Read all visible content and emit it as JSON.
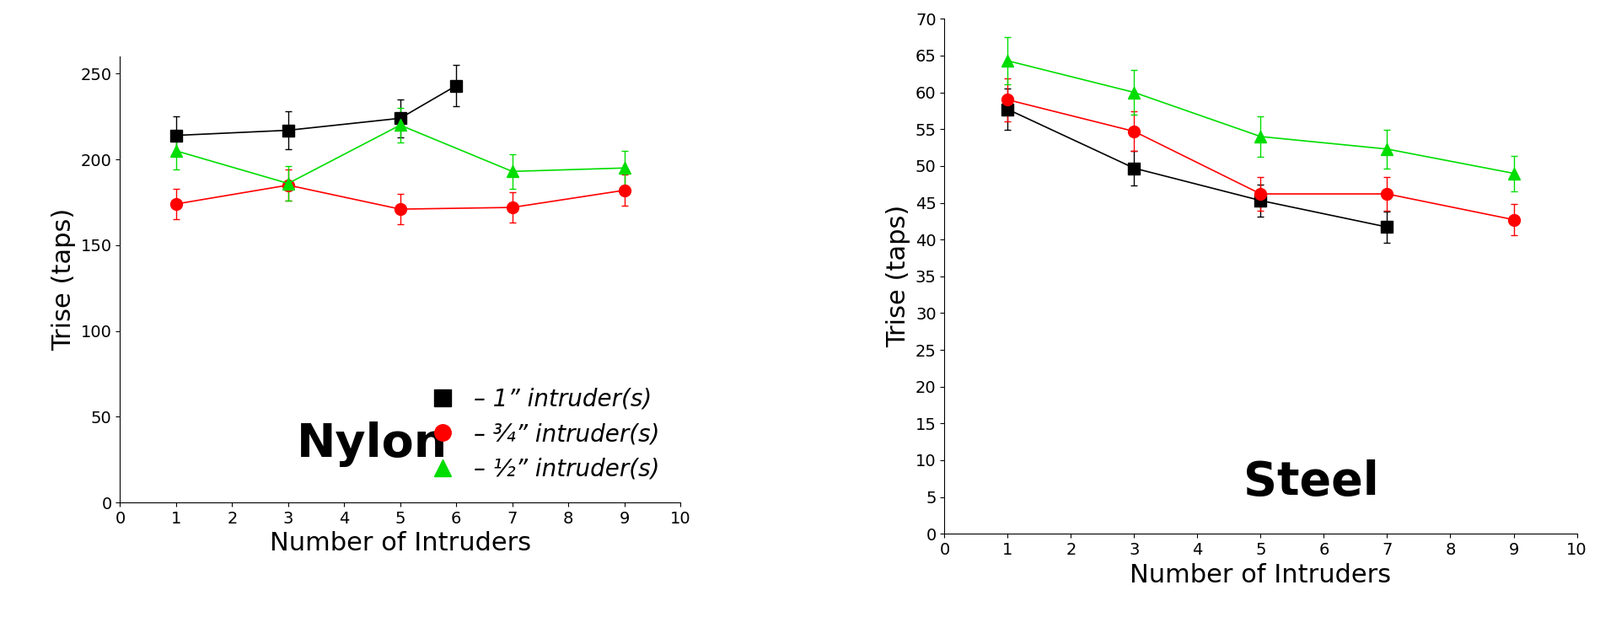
{
  "chart_data": [
    {
      "type": "line",
      "annotation": "Nylon",
      "x_label": "Number of Intruders",
      "y_label": "Trise (taps)",
      "xlim": [
        0,
        10
      ],
      "xticks": [
        0,
        1,
        2,
        3,
        4,
        5,
        6,
        7,
        8,
        9,
        10
      ],
      "ylim": [
        0,
        260
      ],
      "yticks": [
        0,
        50,
        100,
        150,
        200,
        250
      ],
      "legend": "lower right",
      "series": [
        {
          "name": "– 1” intruder(s)",
          "color": "#000000",
          "marker": "square",
          "x": [
            1,
            3,
            5,
            6
          ],
          "values": [
            214,
            217,
            224,
            243
          ],
          "errors": [
            11,
            11,
            11,
            12
          ]
        },
        {
          "name": "– ¾” intruder(s)",
          "color": "#ff0000",
          "marker": "circle",
          "x": [
            1,
            3,
            5,
            7,
            9
          ],
          "values": [
            174,
            185,
            171,
            172,
            182
          ],
          "errors": [
            9,
            9,
            9,
            9,
            9
          ]
        },
        {
          "name": "– ½” intruder(s)",
          "color": "#00dd00",
          "marker": "triangle",
          "x": [
            1,
            3,
            5,
            7,
            9
          ],
          "values": [
            205,
            186,
            220,
            193,
            195
          ],
          "errors": [
            11,
            10,
            10,
            10,
            10
          ]
        }
      ]
    },
    {
      "type": "line",
      "annotation": "Steel",
      "x_label": "Number of Intruders",
      "y_label": "Trise (taps)",
      "xlim": [
        0,
        10
      ],
      "xticks": [
        0,
        1,
        2,
        3,
        4,
        5,
        6,
        7,
        8,
        9,
        10
      ],
      "ylim": [
        0,
        70
      ],
      "yticks": [
        0,
        5,
        10,
        15,
        20,
        25,
        30,
        35,
        40,
        45,
        50,
        55,
        60,
        65,
        70
      ],
      "series": [
        {
          "color": "#000000",
          "marker": "square",
          "x": [
            1,
            3,
            5,
            7
          ],
          "values": [
            57.7,
            49.7,
            45.3,
            41.7
          ],
          "errors": [
            2.8,
            2.4,
            2.2,
            2.1
          ]
        },
        {
          "color": "#ff0000",
          "marker": "circle",
          "x": [
            1,
            3,
            5,
            7,
            9
          ],
          "values": [
            59,
            54.7,
            46.2,
            46.2,
            42.7
          ],
          "errors": [
            2.9,
            2.7,
            2.3,
            2.3,
            2.1
          ]
        },
        {
          "color": "#00dd00",
          "marker": "triangle",
          "x": [
            1,
            3,
            5,
            7,
            9
          ],
          "values": [
            64.3,
            60,
            54,
            52.3,
            49
          ],
          "errors": [
            3.2,
            3.0,
            2.7,
            2.6,
            2.4
          ]
        }
      ]
    }
  ]
}
